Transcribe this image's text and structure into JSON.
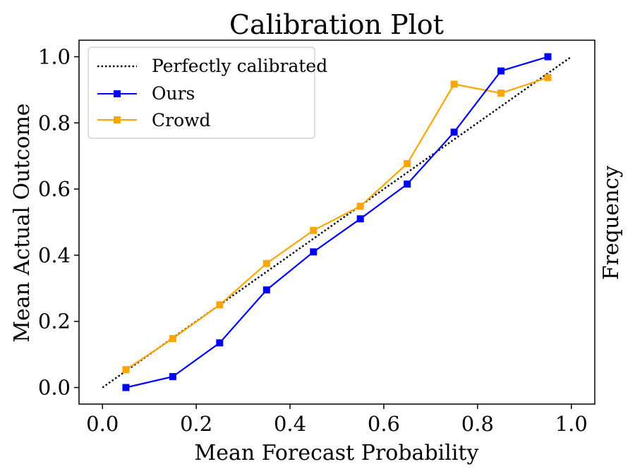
{
  "chart_data": {
    "type": "line",
    "title": "Calibration Plot",
    "xlabel": "Mean Forecast Probability",
    "ylabel": "Mean Actual Outcome",
    "ylabel_right": "Frequency",
    "xlim": [
      -0.05,
      1.05
    ],
    "ylim": [
      -0.05,
      1.05
    ],
    "xticks": [
      "0.0",
      "0.2",
      "0.4",
      "0.6",
      "0.8",
      "1.0"
    ],
    "yticks": [
      "0.0",
      "0.2",
      "0.4",
      "0.6",
      "0.8",
      "1.0"
    ],
    "grid": false,
    "legend_position": "top-left",
    "reference": {
      "name": "Perfectly calibrated",
      "x": [
        0,
        1
      ],
      "y": [
        0,
        1
      ],
      "color": "#000000",
      "style": "dotted"
    },
    "series": [
      {
        "name": "Ours",
        "color": "#0000ff",
        "marker": "square",
        "x": [
          0.05,
          0.15,
          0.25,
          0.35,
          0.45,
          0.55,
          0.65,
          0.75,
          0.85,
          0.95
        ],
        "y": [
          0.0,
          0.033,
          0.135,
          0.295,
          0.41,
          0.51,
          0.615,
          0.772,
          0.957,
          1.0
        ]
      },
      {
        "name": "Crowd",
        "color": "#ffa500",
        "marker": "square",
        "x": [
          0.05,
          0.15,
          0.25,
          0.35,
          0.45,
          0.55,
          0.65,
          0.75,
          0.85,
          0.95
        ],
        "y": [
          0.054,
          0.148,
          0.25,
          0.375,
          0.475,
          0.548,
          0.677,
          0.917,
          0.89,
          0.937
        ]
      }
    ]
  }
}
